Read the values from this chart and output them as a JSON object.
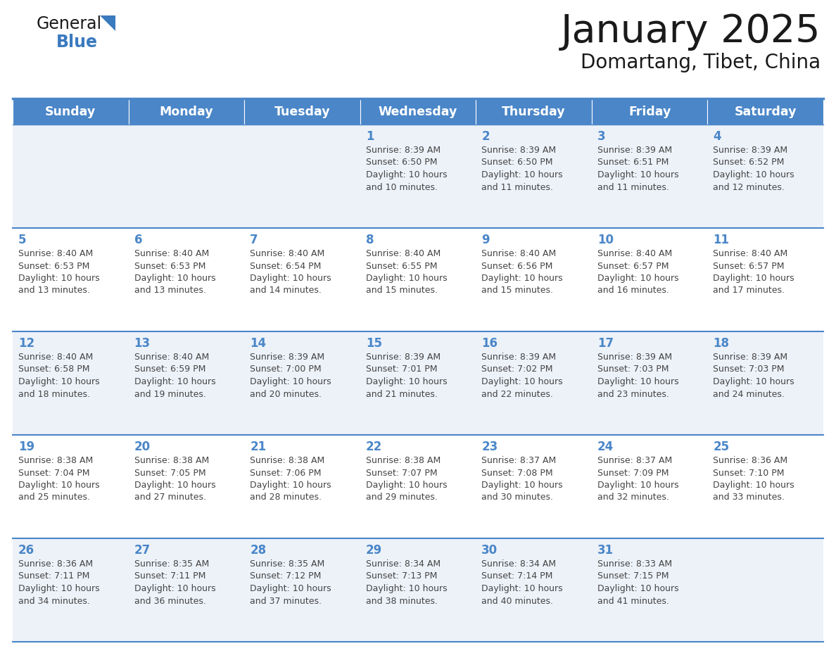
{
  "title": "January 2025",
  "subtitle": "Domartang, Tibet, China",
  "days_of_week": [
    "Sunday",
    "Monday",
    "Tuesday",
    "Wednesday",
    "Thursday",
    "Friday",
    "Saturday"
  ],
  "header_bg": "#4a86c8",
  "header_text": "#ffffff",
  "row_bg_odd": "#edf2f9",
  "row_bg_even": "#ffffff",
  "border_color": "#4a86c8",
  "day_number_color": "#4a86c8",
  "cell_text_color": "#444444",
  "fig_width": 11.88,
  "fig_height": 9.18,
  "dpi": 100,
  "calendar_data": [
    {
      "day": 1,
      "col": 3,
      "row": 0,
      "sunrise": "8:39 AM",
      "sunset": "6:50 PM",
      "daylight_hours": 10,
      "daylight_minutes": 10
    },
    {
      "day": 2,
      "col": 4,
      "row": 0,
      "sunrise": "8:39 AM",
      "sunset": "6:50 PM",
      "daylight_hours": 10,
      "daylight_minutes": 11
    },
    {
      "day": 3,
      "col": 5,
      "row": 0,
      "sunrise": "8:39 AM",
      "sunset": "6:51 PM",
      "daylight_hours": 10,
      "daylight_minutes": 11
    },
    {
      "day": 4,
      "col": 6,
      "row": 0,
      "sunrise": "8:39 AM",
      "sunset": "6:52 PM",
      "daylight_hours": 10,
      "daylight_minutes": 12
    },
    {
      "day": 5,
      "col": 0,
      "row": 1,
      "sunrise": "8:40 AM",
      "sunset": "6:53 PM",
      "daylight_hours": 10,
      "daylight_minutes": 13
    },
    {
      "day": 6,
      "col": 1,
      "row": 1,
      "sunrise": "8:40 AM",
      "sunset": "6:53 PM",
      "daylight_hours": 10,
      "daylight_minutes": 13
    },
    {
      "day": 7,
      "col": 2,
      "row": 1,
      "sunrise": "8:40 AM",
      "sunset": "6:54 PM",
      "daylight_hours": 10,
      "daylight_minutes": 14
    },
    {
      "day": 8,
      "col": 3,
      "row": 1,
      "sunrise": "8:40 AM",
      "sunset": "6:55 PM",
      "daylight_hours": 10,
      "daylight_minutes": 15
    },
    {
      "day": 9,
      "col": 4,
      "row": 1,
      "sunrise": "8:40 AM",
      "sunset": "6:56 PM",
      "daylight_hours": 10,
      "daylight_minutes": 15
    },
    {
      "day": 10,
      "col": 5,
      "row": 1,
      "sunrise": "8:40 AM",
      "sunset": "6:57 PM",
      "daylight_hours": 10,
      "daylight_minutes": 16
    },
    {
      "day": 11,
      "col": 6,
      "row": 1,
      "sunrise": "8:40 AM",
      "sunset": "6:57 PM",
      "daylight_hours": 10,
      "daylight_minutes": 17
    },
    {
      "day": 12,
      "col": 0,
      "row": 2,
      "sunrise": "8:40 AM",
      "sunset": "6:58 PM",
      "daylight_hours": 10,
      "daylight_minutes": 18
    },
    {
      "day": 13,
      "col": 1,
      "row": 2,
      "sunrise": "8:40 AM",
      "sunset": "6:59 PM",
      "daylight_hours": 10,
      "daylight_minutes": 19
    },
    {
      "day": 14,
      "col": 2,
      "row": 2,
      "sunrise": "8:39 AM",
      "sunset": "7:00 PM",
      "daylight_hours": 10,
      "daylight_minutes": 20
    },
    {
      "day": 15,
      "col": 3,
      "row": 2,
      "sunrise": "8:39 AM",
      "sunset": "7:01 PM",
      "daylight_hours": 10,
      "daylight_minutes": 21
    },
    {
      "day": 16,
      "col": 4,
      "row": 2,
      "sunrise": "8:39 AM",
      "sunset": "7:02 PM",
      "daylight_hours": 10,
      "daylight_minutes": 22
    },
    {
      "day": 17,
      "col": 5,
      "row": 2,
      "sunrise": "8:39 AM",
      "sunset": "7:03 PM",
      "daylight_hours": 10,
      "daylight_minutes": 23
    },
    {
      "day": 18,
      "col": 6,
      "row": 2,
      "sunrise": "8:39 AM",
      "sunset": "7:03 PM",
      "daylight_hours": 10,
      "daylight_minutes": 24
    },
    {
      "day": 19,
      "col": 0,
      "row": 3,
      "sunrise": "8:38 AM",
      "sunset": "7:04 PM",
      "daylight_hours": 10,
      "daylight_minutes": 25
    },
    {
      "day": 20,
      "col": 1,
      "row": 3,
      "sunrise": "8:38 AM",
      "sunset": "7:05 PM",
      "daylight_hours": 10,
      "daylight_minutes": 27
    },
    {
      "day": 21,
      "col": 2,
      "row": 3,
      "sunrise": "8:38 AM",
      "sunset": "7:06 PM",
      "daylight_hours": 10,
      "daylight_minutes": 28
    },
    {
      "day": 22,
      "col": 3,
      "row": 3,
      "sunrise": "8:38 AM",
      "sunset": "7:07 PM",
      "daylight_hours": 10,
      "daylight_minutes": 29
    },
    {
      "day": 23,
      "col": 4,
      "row": 3,
      "sunrise": "8:37 AM",
      "sunset": "7:08 PM",
      "daylight_hours": 10,
      "daylight_minutes": 30
    },
    {
      "day": 24,
      "col": 5,
      "row": 3,
      "sunrise": "8:37 AM",
      "sunset": "7:09 PM",
      "daylight_hours": 10,
      "daylight_minutes": 32
    },
    {
      "day": 25,
      "col": 6,
      "row": 3,
      "sunrise": "8:36 AM",
      "sunset": "7:10 PM",
      "daylight_hours": 10,
      "daylight_minutes": 33
    },
    {
      "day": 26,
      "col": 0,
      "row": 4,
      "sunrise": "8:36 AM",
      "sunset": "7:11 PM",
      "daylight_hours": 10,
      "daylight_minutes": 34
    },
    {
      "day": 27,
      "col": 1,
      "row": 4,
      "sunrise": "8:35 AM",
      "sunset": "7:11 PM",
      "daylight_hours": 10,
      "daylight_minutes": 36
    },
    {
      "day": 28,
      "col": 2,
      "row": 4,
      "sunrise": "8:35 AM",
      "sunset": "7:12 PM",
      "daylight_hours": 10,
      "daylight_minutes": 37
    },
    {
      "day": 29,
      "col": 3,
      "row": 4,
      "sunrise": "8:34 AM",
      "sunset": "7:13 PM",
      "daylight_hours": 10,
      "daylight_minutes": 38
    },
    {
      "day": 30,
      "col": 4,
      "row": 4,
      "sunrise": "8:34 AM",
      "sunset": "7:14 PM",
      "daylight_hours": 10,
      "daylight_minutes": 40
    },
    {
      "day": 31,
      "col": 5,
      "row": 4,
      "sunrise": "8:33 AM",
      "sunset": "7:15 PM",
      "daylight_hours": 10,
      "daylight_minutes": 41
    }
  ]
}
